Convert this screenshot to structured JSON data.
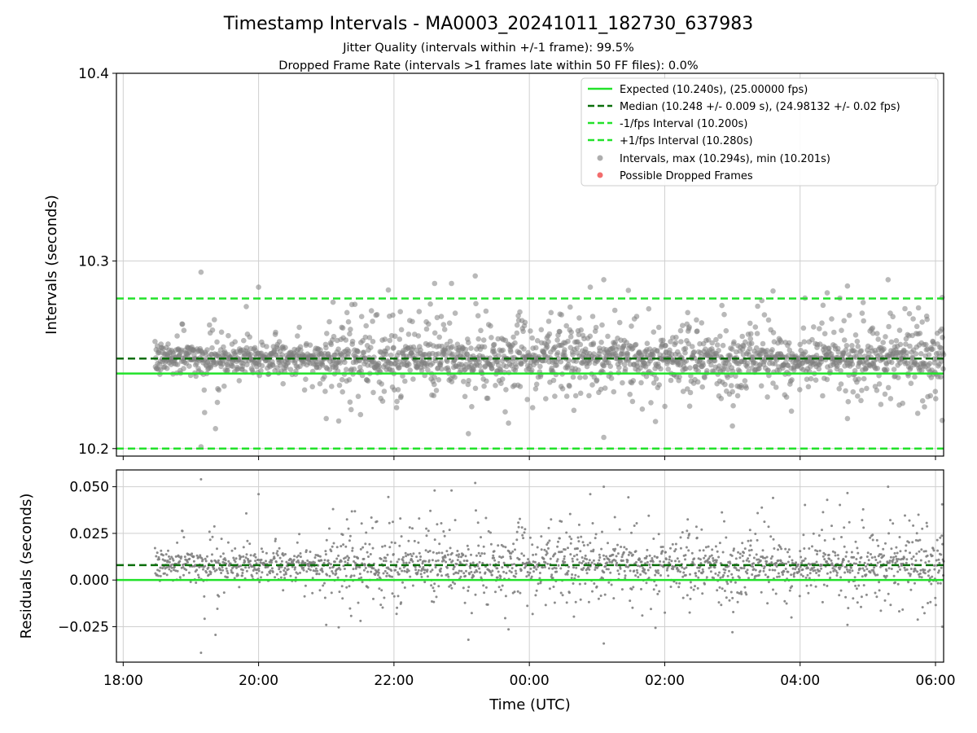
{
  "chart_data": {
    "type": "scatter",
    "title": "Timestamp Intervals - MA0003_20241011_182730_637983",
    "subtitle_lines": [
      "Jitter Quality (intervals within +/-1 frame): 99.5%",
      "Dropped Frame Rate (intervals >1 frames late within 50 FF files): 0.0%"
    ],
    "xlabel": "Time (UTC)",
    "x_ticks": [
      "18:00",
      "20:00",
      "22:00",
      "00:00",
      "02:00",
      "04:00",
      "06:00"
    ],
    "x_range_hours": [
      17.9,
      30.12
    ],
    "data_x_range_hours": [
      18.47,
      30.12
    ],
    "top_panel": {
      "ylabel": "Intervals (seconds)",
      "ylim": [
        10.196,
        10.4
      ],
      "y_ticks": [
        "10.2",
        "10.3",
        "10.4"
      ],
      "y_tick_values": [
        10.2,
        10.3,
        10.4
      ],
      "expected_interval": 10.24,
      "median_interval": 10.248,
      "lower_interval": 10.2,
      "upper_interval": 10.28,
      "max_interval": 10.294,
      "min_interval": 10.201
    },
    "bottom_panel": {
      "ylabel": "Residuals (seconds)",
      "ylim": [
        -0.044,
        0.059
      ],
      "y_ticks": [
        "0.050",
        "0.025",
        "0.000",
        "−0.025"
      ],
      "y_tick_values": [
        0.05,
        0.025,
        0.0,
        -0.025
      ],
      "zero_line": 0.0,
      "median_residual": 0.008
    },
    "legend": {
      "placement": "upper right",
      "entries": [
        {
          "label": "Expected (10.240s), (25.00000 fps)",
          "style": "solid-line",
          "color": "#22e22a"
        },
        {
          "label": "Median (10.248 +/- 0.009 s), (24.98132 +/- 0.02 fps)",
          "style": "dashed-line",
          "color": "#0a6e0a"
        },
        {
          "label": "-1/fps Interval (10.200s)",
          "style": "dashed-line",
          "color": "#22e22a"
        },
        {
          "label": "+1/fps Interval (10.280s)",
          "style": "dashed-line",
          "color": "#22e22a"
        },
        {
          "label": "Intervals, max (10.294s), min (10.201s)",
          "style": "gray-dot",
          "color": "#8c8c8c"
        },
        {
          "label": "Possible Dropped Frames",
          "style": "red-dot",
          "color": "#f26d6d"
        }
      ]
    },
    "sample_points": [
      [
        19.15,
        10.294
      ],
      [
        19.15,
        10.201
      ],
      [
        20.0,
        10.286
      ],
      [
        21.1,
        10.278
      ],
      [
        22.6,
        10.288
      ],
      [
        22.85,
        10.288
      ],
      [
        23.2,
        10.292
      ],
      [
        23.1,
        10.208
      ],
      [
        24.9,
        10.286
      ],
      [
        25.1,
        10.29
      ],
      [
        25.1,
        10.206
      ],
      [
        27.6,
        10.284
      ],
      [
        28.4,
        10.283
      ],
      [
        29.3,
        10.29
      ],
      [
        21.0,
        10.216
      ],
      [
        27.0,
        10.212
      ],
      [
        28.7,
        10.216
      ],
      [
        30.1,
        10.215
      ]
    ],
    "scatter_spread": {
      "core_sigma": 0.004,
      "wide_sigma": 0.013,
      "max": 10.294,
      "min": 10.201
    }
  },
  "colors": {
    "bright_green": "#22e22a",
    "dark_green": "#0a6e0a",
    "scatter_gray": "#808080",
    "grid": "#cfcfcf",
    "dropped_red": "#f26d6d"
  }
}
